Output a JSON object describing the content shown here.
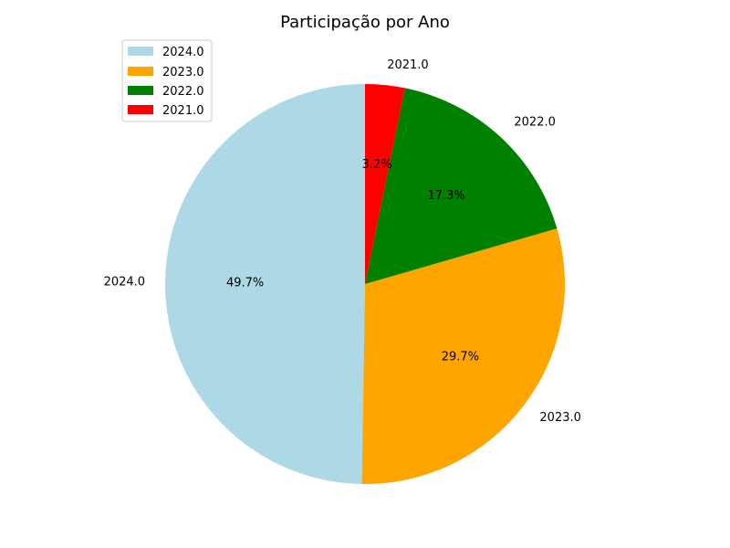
{
  "chart_data": {
    "type": "pie",
    "title": "Participação por Ano",
    "slices": [
      {
        "label": "2024.0",
        "pct_text": "49.7%",
        "value": 49.7,
        "color": "#add8e6"
      },
      {
        "label": "2023.0",
        "pct_text": "29.7%",
        "value": 29.7,
        "color": "#ffa500"
      },
      {
        "label": "2022.0",
        "pct_text": "17.3%",
        "value": 17.3,
        "color": "#008000"
      },
      {
        "label": "2021.0",
        "pct_text": "3.2%",
        "value": 3.2,
        "color": "#ff0000"
      }
    ],
    "legend": {
      "placement": "upper-left",
      "entries": [
        "2024.0",
        "2023.0",
        "2022.0",
        "2021.0"
      ]
    },
    "start_angle_deg": 90,
    "direction": "counterclockwise"
  }
}
